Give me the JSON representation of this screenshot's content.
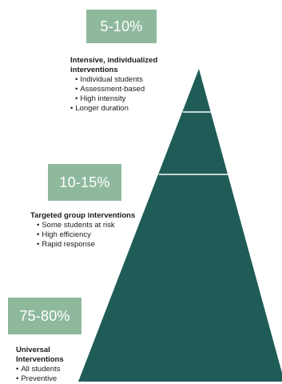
{
  "tiers": [
    {
      "percentage": "5-10%",
      "heading": "Intensive, individualized interventions",
      "items": [
        "Individual students",
        "Assessment-based",
        "High intensity",
        "Longer duration"
      ]
    },
    {
      "percentage": "10-15%",
      "heading": "Targeted group interventions",
      "items": [
        "Some students at risk",
        "High efficiency",
        "Rapid response"
      ]
    },
    {
      "percentage": "75-80%",
      "heading": "Universal Interventions",
      "items": [
        "All students",
        "Preventive"
      ]
    }
  ],
  "colors": {
    "pyramid_fill": "#1f5c58",
    "separator": "#ffffff",
    "percentage_box": "#8fb99d",
    "percentage_text": "#ffffff"
  }
}
